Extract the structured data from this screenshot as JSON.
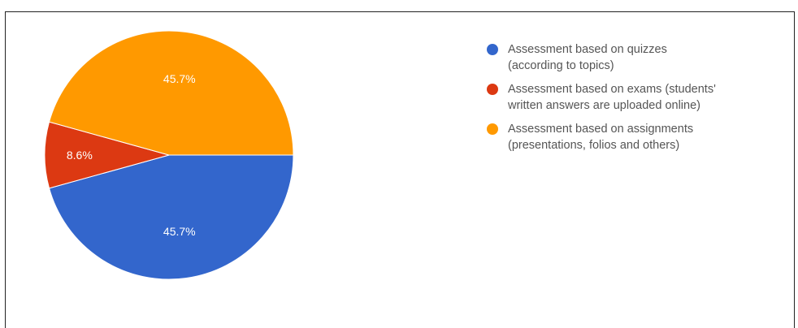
{
  "chart_data": {
    "type": "pie",
    "title": "",
    "slices": [
      {
        "label": "Assessment based on quizzes (according to topics)",
        "value": 45.7,
        "display": "45.7%",
        "color": "#3366cc"
      },
      {
        "label": "Assessment based on exams (students' written answers are uploaded online)",
        "value": 8.6,
        "display": "8.6%",
        "color": "#dc3912"
      },
      {
        "label": "Assessment based on assignments (presentations, folios and others)",
        "value": 45.7,
        "display": "45.7%",
        "color": "#ff9900"
      }
    ],
    "legend_position": "right"
  },
  "legend": {
    "items": [
      {
        "line1": "Assessment based on quizzes",
        "line2": "(according to topics)",
        "color": "#3366cc"
      },
      {
        "line1": "Assessment based on exams (students'",
        "line2": "written answers are uploaded online)",
        "color": "#dc3912"
      },
      {
        "line1": "Assessment based on assignments",
        "line2": "(presentations, folios and others)",
        "color": "#ff9900"
      }
    ]
  }
}
